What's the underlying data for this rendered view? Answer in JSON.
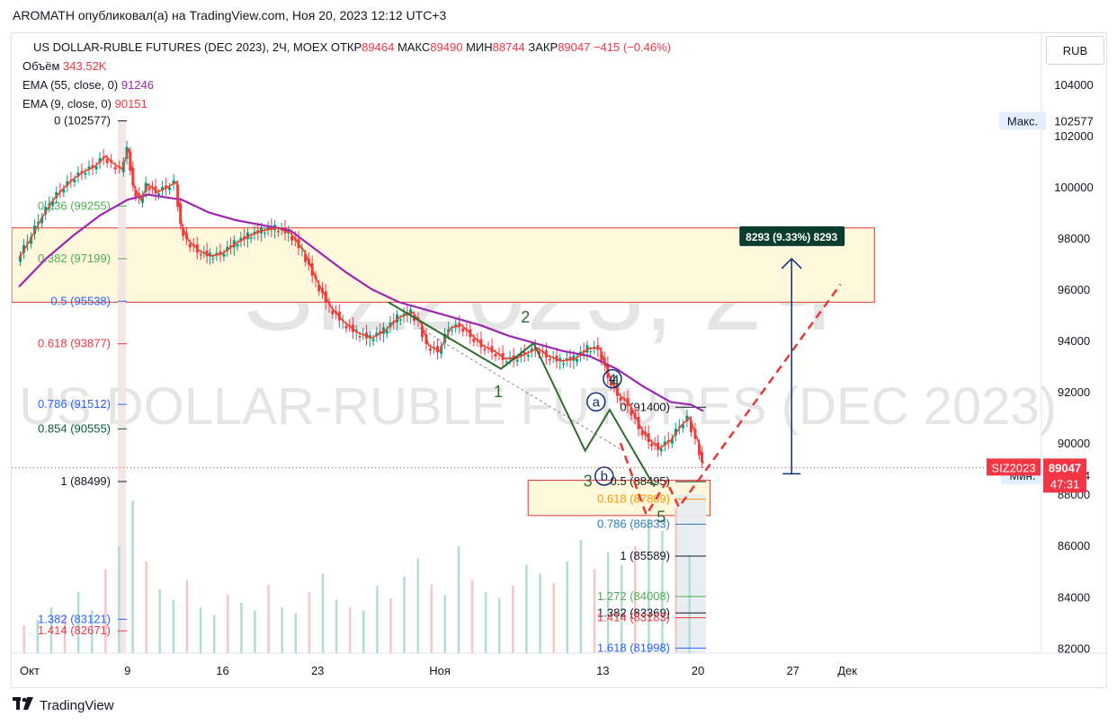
{
  "header": {
    "publisher_line": "AROMATH опубликовал(а) на TradingView.com, Ноя 20, 2023 12:12 UTC+3"
  },
  "legend": {
    "symbol": "US DOLLAR-RUBLE FUTURES (DEC 2023), 2Ч, MOEX",
    "open_label": "ОТКР",
    "open": "89464",
    "high_label": "МАКС",
    "high": "89490",
    "low_label": "МИН",
    "low": "88744",
    "close_label": "ЗАКР",
    "close": "89047",
    "change": "−415 (−0.46%)",
    "volume_label": "Объём",
    "volume": "343.52K",
    "ema55_label": "EMA (55, close, 0)",
    "ema55": "91246",
    "ema9_label": "EMA (9, close, 0)",
    "ema9": "90151"
  },
  "watermark": {
    "line1": "SIZ2023, 2Ч",
    "line2": "US DOLLAR-RUBLE FUTURES (DEC 2023)"
  },
  "currency_button": "RUB",
  "footer_logo": "TradingView",
  "colors": {
    "candle_up": "#089981",
    "candle_down": "#f23645",
    "ema55": "#9c27b0",
    "ema9": "#e8472c",
    "wave": "#2e6b2e",
    "projection": "#e53935",
    "measure": "#0d2e7a",
    "zone_fill": "#fff8dc",
    "zone_border": "#e53935"
  },
  "chart_data": {
    "type": "candlestick",
    "y_axis": {
      "range": [
        81800,
        106000
      ],
      "ticks": [
        82000,
        84000,
        86000,
        88000,
        90000,
        92000,
        94000,
        96000,
        98000,
        100000,
        102000,
        104000
      ],
      "tick_labels": [
        "82000",
        "84000",
        "86000",
        "88000",
        "90000",
        "92000",
        "94000",
        "96000",
        "98000",
        "100000",
        "102000",
        "104000"
      ]
    },
    "x_axis": {
      "ticks": [
        {
          "label": "Окт",
          "day": 0
        },
        {
          "label": "9",
          "day": 8
        },
        {
          "label": "16",
          "day": 15
        },
        {
          "label": "23",
          "day": 22
        },
        {
          "label": "Ноя",
          "day": 31
        },
        {
          "label": "13",
          "day": 43
        },
        {
          "label": "20",
          "day": 50
        },
        {
          "label": "27",
          "day": 57
        },
        {
          "label": "Дек",
          "day": 61
        }
      ],
      "range_days": [
        0,
        70
      ]
    },
    "price_labels": {
      "max_label": "Макс.",
      "max_value": "102577",
      "min_label": "Мин.",
      "min_value": "88744",
      "current_symbol": "SIZ2023",
      "current_value": "89047",
      "countdown": "47:31"
    },
    "price_path": [
      [
        0.0,
        97200
      ],
      [
        0.8,
        97900
      ],
      [
        1.6,
        98700
      ],
      [
        2.4,
        99400
      ],
      [
        3.2,
        99900
      ],
      [
        4.0,
        100300
      ],
      [
        4.8,
        100600
      ],
      [
        5.6,
        100800
      ],
      [
        6.4,
        101200
      ],
      [
        7.0,
        100900
      ],
      [
        7.6,
        100700
      ],
      [
        8.1,
        101500
      ],
      [
        8.5,
        100000
      ],
      [
        9.0,
        99500
      ],
      [
        9.5,
        100100
      ],
      [
        10.2,
        99800
      ],
      [
        11.0,
        100000
      ],
      [
        11.6,
        100200
      ],
      [
        12.0,
        98500
      ],
      [
        12.5,
        97900
      ],
      [
        13.3,
        97500
      ],
      [
        14.2,
        97300
      ],
      [
        15.0,
        97400
      ],
      [
        16.0,
        97800
      ],
      [
        17.0,
        98100
      ],
      [
        18.0,
        98300
      ],
      [
        19.0,
        98400
      ],
      [
        20.0,
        98200
      ],
      [
        21.0,
        97500
      ],
      [
        22.0,
        96300
      ],
      [
        23.0,
        95300
      ],
      [
        24.0,
        94700
      ],
      [
        25.0,
        94300
      ],
      [
        26.0,
        94100
      ],
      [
        27.0,
        94400
      ],
      [
        28.0,
        94900
      ],
      [
        29.0,
        95100
      ],
      [
        29.6,
        94700
      ],
      [
        30.2,
        93800
      ],
      [
        31.0,
        93600
      ],
      [
        31.8,
        94500
      ],
      [
        32.6,
        94600
      ],
      [
        33.4,
        94200
      ],
      [
        34.2,
        93800
      ],
      [
        35.0,
        93600
      ],
      [
        35.8,
        93300
      ],
      [
        36.6,
        93300
      ],
      [
        37.4,
        93500
      ],
      [
        38.2,
        93700
      ],
      [
        39.0,
        93400
      ],
      [
        40.0,
        93200
      ],
      [
        41.0,
        93300
      ],
      [
        42.0,
        93700
      ],
      [
        42.8,
        93700
      ],
      [
        43.5,
        92600
      ],
      [
        44.2,
        91900
      ],
      [
        45.0,
        91500
      ],
      [
        45.8,
        90600
      ],
      [
        46.5,
        90100
      ],
      [
        47.2,
        89800
      ],
      [
        48.0,
        90100
      ],
      [
        48.8,
        90700
      ],
      [
        49.4,
        91000
      ],
      [
        50.0,
        90100
      ],
      [
        50.4,
        89200
      ]
    ],
    "ema55_path": [
      [
        0.0,
        96100
      ],
      [
        2.0,
        97200
      ],
      [
        4.0,
        98100
      ],
      [
        6.0,
        98900
      ],
      [
        8.0,
        99500
      ],
      [
        9.5,
        99700
      ],
      [
        12.0,
        99500
      ],
      [
        14.0,
        99000
      ],
      [
        16.0,
        98700
      ],
      [
        18.0,
        98500
      ],
      [
        20.0,
        98300
      ],
      [
        22.0,
        97500
      ],
      [
        24.0,
        96700
      ],
      [
        26.0,
        96000
      ],
      [
        28.0,
        95500
      ],
      [
        30.0,
        95200
      ],
      [
        32.0,
        94900
      ],
      [
        34.0,
        94600
      ],
      [
        36.0,
        94200
      ],
      [
        38.0,
        93900
      ],
      [
        40.0,
        93600
      ],
      [
        42.0,
        93400
      ],
      [
        44.0,
        92900
      ],
      [
        46.0,
        92200
      ],
      [
        48.0,
        91600
      ],
      [
        49.5,
        91500
      ],
      [
        50.4,
        91250
      ]
    ],
    "volume": {
      "values": [
        18,
        22,
        30,
        25,
        40,
        28,
        55,
        70,
        100,
        60,
        42,
        35,
        48,
        30,
        25,
        38,
        33,
        28,
        45,
        30,
        26,
        40,
        52,
        35,
        30,
        28,
        44,
        36,
        50,
        62,
        45,
        38,
        70,
        48,
        40,
        36,
        44,
        58,
        52,
        46,
        60,
        74,
        55,
        66,
        58,
        70,
        88,
        80,
        95,
        64
      ]
    },
    "fib_left": [
      {
        "label": "0 (102577)",
        "price": 102577,
        "color": "#131722"
      },
      {
        "label": "0.236 (99255)",
        "price": 99255,
        "color": "#4caf50"
      },
      {
        "label": "0.382 (97199)",
        "price": 97199,
        "color": "#4caf50"
      },
      {
        "label": "0.5 (95538)",
        "price": 95538,
        "color": "#2962ff"
      },
      {
        "label": "0.618 (93877)",
        "price": 93877,
        "color": "#f23645"
      },
      {
        "label": "0.786 (91512)",
        "price": 91512,
        "color": "#2962ff"
      },
      {
        "label": "0.854 (90555)",
        "price": 90555,
        "color": "#0b5e3a"
      },
      {
        "label": "1 (88499)",
        "price": 88499,
        "color": "#131722"
      },
      {
        "label": "1.382 (83121)",
        "price": 83121,
        "color": "#2962ff"
      },
      {
        "label": "1.414 (82671)",
        "price": 82671,
        "color": "#f23645"
      }
    ],
    "fib_right": [
      {
        "label": "0 (91400)",
        "price": 91400,
        "color": "#131722"
      },
      {
        "label": "0.5 (88495)",
        "price": 88495,
        "color": "#131722"
      },
      {
        "label": "0.618 (87809)",
        "price": 87809,
        "color": "#ff9800"
      },
      {
        "label": "0.786 (86833)",
        "price": 86833,
        "color": "#2e7dbf"
      },
      {
        "label": "1 (85589)",
        "price": 85589,
        "color": "#131722"
      },
      {
        "label": "1.272 (84008)",
        "price": 84008,
        "color": "#4caf50"
      },
      {
        "label": "1.382 (83369)",
        "price": 83369,
        "color": "#131722"
      },
      {
        "label": "1.414 (83183)",
        "price": 83183,
        "color": "#f23645"
      },
      {
        "label": "1.618 (81998)",
        "price": 81998,
        "color": "#2962ff"
      }
    ],
    "zone_top": {
      "price_top": 98400,
      "price_bottom": 95500,
      "day_start": 0,
      "day_end": 63
    },
    "zone_bottom": {
      "price_top": 88550,
      "price_bottom": 87170,
      "day_start": 37.5,
      "day_end": 50.9
    },
    "wave_points": [
      {
        "day": 27.2,
        "price": 95500
      },
      {
        "day": 35.5,
        "price": 92900
      },
      {
        "day": 37.9,
        "price": 93900
      },
      {
        "day": 41.7,
        "price": 89700
      },
      {
        "day": 43.5,
        "price": 91300
      },
      {
        "day": 46.8,
        "price": 88300
      }
    ],
    "wave_labels": [
      {
        "text": "1",
        "day": 35.3,
        "price": 91800
      },
      {
        "text": "2",
        "day": 37.3,
        "price": 94700
      },
      {
        "text": "3",
        "day": 41.9,
        "price": 88300
      },
      {
        "text": "4",
        "day": 43.9,
        "price": 92200
      },
      {
        "text": "5",
        "day": 47.3,
        "price": 86900
      }
    ],
    "circle_labels": [
      {
        "text": "a",
        "day": 42.5,
        "price": 91400
      },
      {
        "text": "b",
        "day": 43.1,
        "price": 88500
      },
      {
        "text": "4",
        "day": 43.7,
        "price": 92300
      }
    ],
    "projection_path": [
      [
        44.3,
        90000
      ],
      [
        46.2,
        87200
      ],
      [
        47.7,
        88500
      ],
      [
        48.6,
        87500
      ],
      [
        50.8,
        89100
      ],
      [
        60.5,
        96200
      ]
    ],
    "measure": {
      "day": 56.9,
      "from_price": 88800,
      "to_price": 97200,
      "label": "8293 (9.33%) 8293"
    },
    "current_price": 89047
  }
}
